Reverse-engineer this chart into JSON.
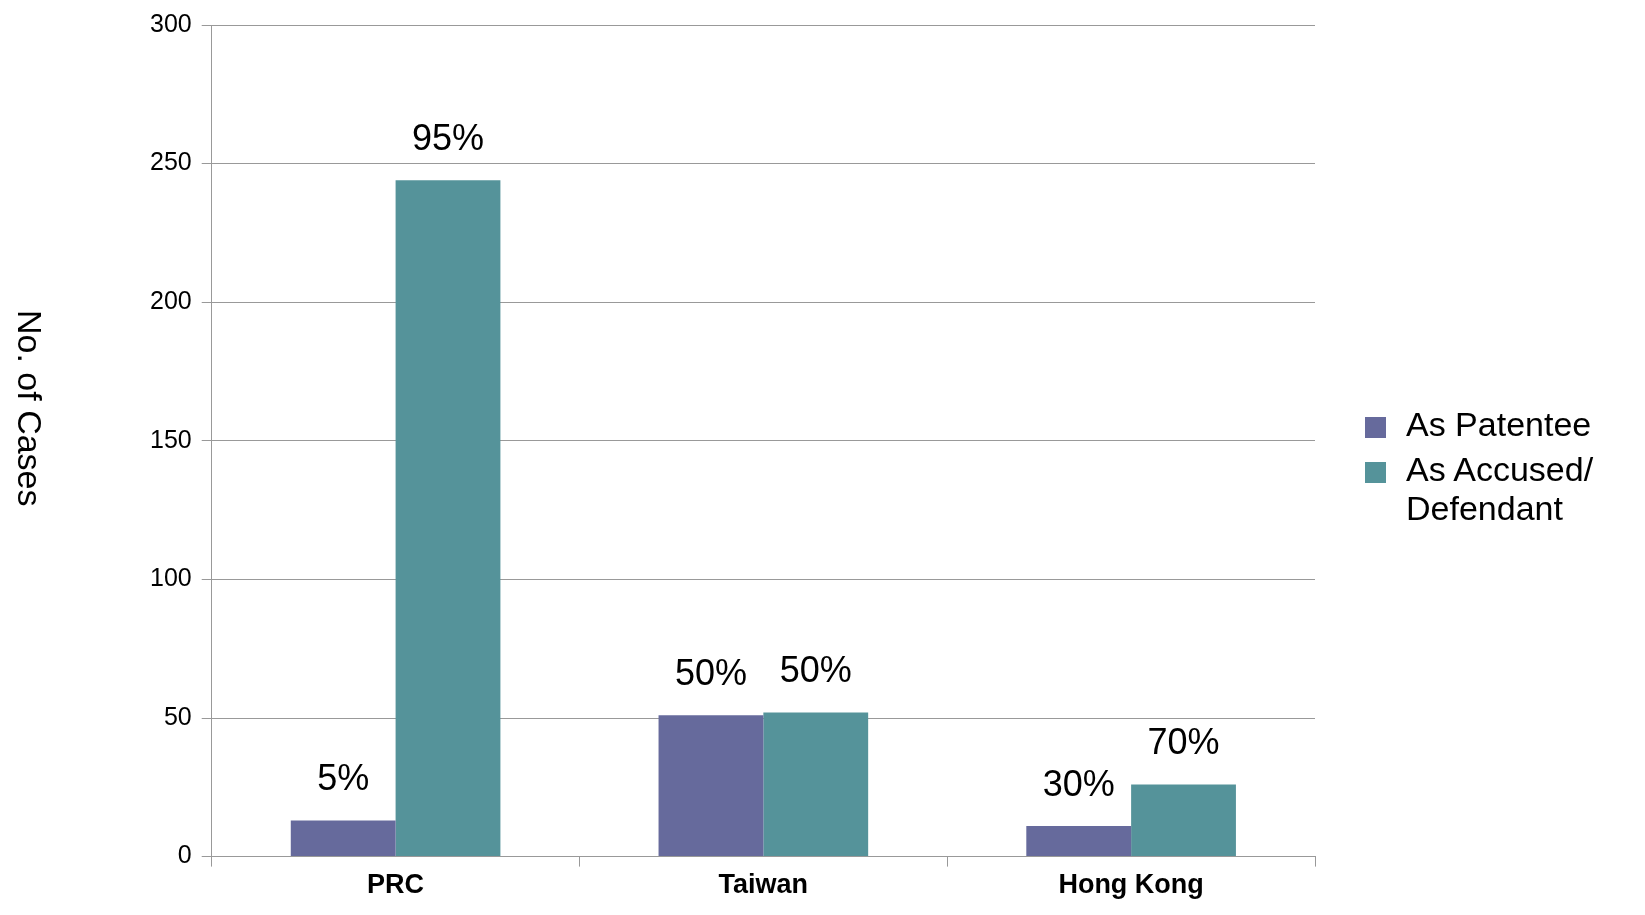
{
  "chart_data": {
    "type": "bar",
    "ylabel": "No. of Cases",
    "categories": [
      "PRC",
      "Taiwan",
      "Hong Kong"
    ],
    "series": [
      {
        "name": "As Patentee",
        "color": "#666a9c",
        "values": [
          13,
          51,
          11
        ]
      },
      {
        "name": "As Accused/ Defendant",
        "color": "#55939a",
        "values": [
          244,
          52,
          26
        ]
      }
    ],
    "annotations": [
      {
        "text": "5%",
        "x": "PRC",
        "y": 13
      },
      {
        "text": "95%",
        "x": "PRC",
        "y": 244
      },
      {
        "text": "50%",
        "x": "Taiwan",
        "y": 51
      },
      {
        "text": "50%",
        "x": "Taiwan",
        "y": 52
      },
      {
        "text": "30%",
        "x": "Hong Kong",
        "y": 11
      },
      {
        "text": "70%",
        "x": "Hong Kong",
        "y": 26
      }
    ],
    "ylim": [
      0,
      300
    ],
    "yticks": [
      0,
      50,
      100,
      150,
      200,
      250,
      300
    ],
    "grid": "y",
    "legend": "right"
  }
}
